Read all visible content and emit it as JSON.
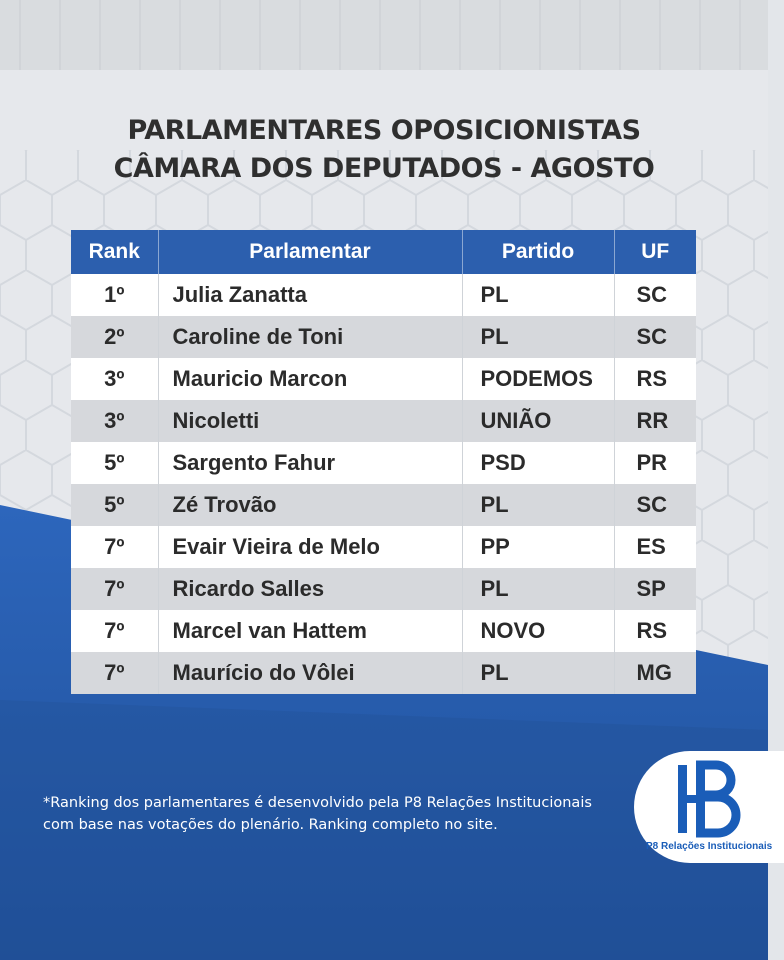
{
  "title": {
    "line1": "PARLAMENTARES OPOSICIONISTAS",
    "line2": "CÂMARA DOS DEPUTADOS - AGOSTO"
  },
  "table": {
    "headers": [
      "Rank",
      "Parlamentar",
      "Partido",
      "UF"
    ],
    "rows": [
      {
        "rank": "1º",
        "name": "Julia Zanatta",
        "party": "PL",
        "uf": "SC"
      },
      {
        "rank": "2º",
        "name": "Caroline de Toni",
        "party": "PL",
        "uf": "SC"
      },
      {
        "rank": "3º",
        "name": "Mauricio Marcon",
        "party": "PODEMOS",
        "uf": "RS"
      },
      {
        "rank": "3º",
        "name": "Nicoletti",
        "party": "UNIÃO",
        "uf": "RR"
      },
      {
        "rank": "5º",
        "name": "Sargento Fahur",
        "party": "PSD",
        "uf": "PR"
      },
      {
        "rank": "5º",
        "name": "Zé Trovão",
        "party": "PL",
        "uf": "SC"
      },
      {
        "rank": "7º",
        "name": "Evair Vieira de Melo",
        "party": "PP",
        "uf": "ES"
      },
      {
        "rank": "7º",
        "name": "Ricardo Salles",
        "party": "PL",
        "uf": "SP"
      },
      {
        "rank": "7º",
        "name": "Marcel van Hattem",
        "party": "NOVO",
        "uf": "RS"
      },
      {
        "rank": "7º",
        "name": "Maurício do Vôlei",
        "party": "PL",
        "uf": "MG"
      }
    ]
  },
  "footnote": {
    "line1": "*Ranking dos parlamentares é desenvolvido pela P8 Relações Institucionais",
    "line2": "com base nas votações do plenário. Ranking completo no site."
  },
  "logo": {
    "caption": "P8 Relações Institucionais",
    "icon": "p8-logo-icon"
  },
  "colors": {
    "header_blue": "#2c5fae",
    "background_blue": "#2b63b8",
    "background_light": "#e3e6ea",
    "title_text": "#2f2f2f"
  }
}
